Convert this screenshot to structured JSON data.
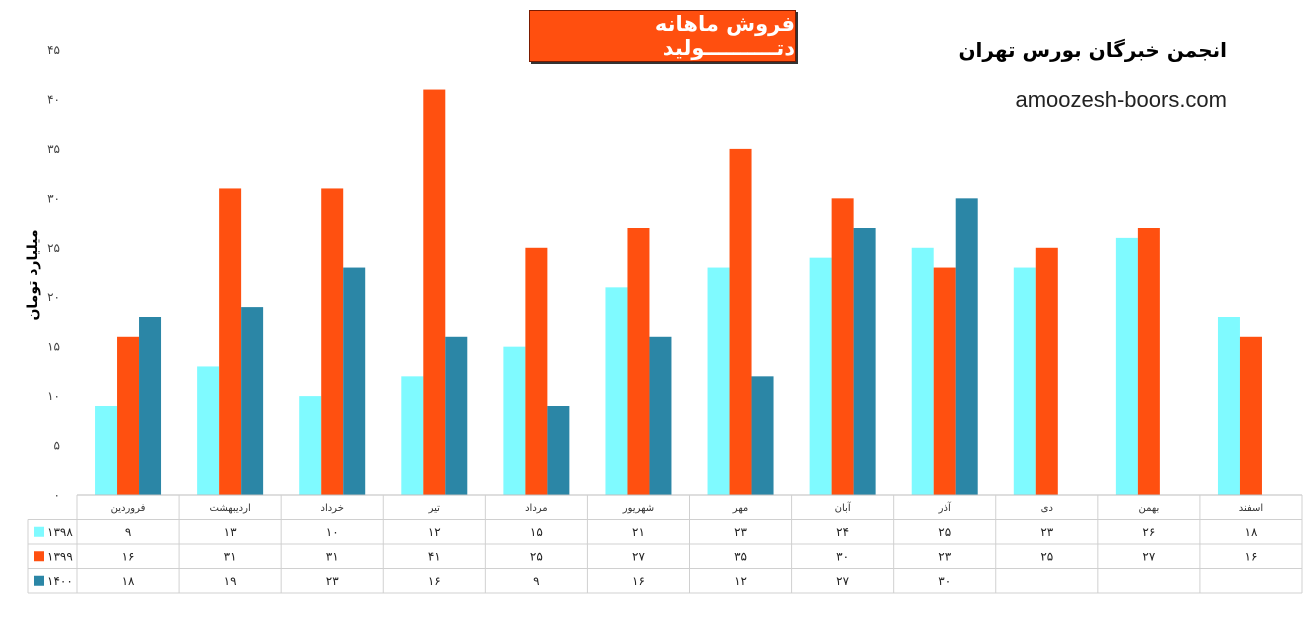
{
  "header": {
    "title": "فروش ماهانه دتــــــــــولید",
    "org_name": "انجمن خبرگان بورس تهران",
    "site_url": "amoozesh-boors.com"
  },
  "chart_data": {
    "type": "bar",
    "title": "فروش ماهانه دتــــــــــولید",
    "ylabel": "میلیارد تومان",
    "xlabel": "",
    "ylim": [
      0,
      45
    ],
    "yticks": [
      0,
      5,
      10,
      15,
      20,
      25,
      30,
      35,
      40,
      45
    ],
    "ytick_labels": [
      "۰",
      "۵",
      "۱۰",
      "۱۵",
      "۲۰",
      "۲۵",
      "۳۰",
      "۳۵",
      "۴۰",
      "۴۵"
    ],
    "grid": false,
    "legend": "data-table-left",
    "categories": [
      "فروردین",
      "اردیبهشت",
      "خرداد",
      "تیر",
      "مرداد",
      "شهریور",
      "مهر",
      "آبان",
      "آذر",
      "دی",
      "بهمن",
      "اسفند"
    ],
    "series": [
      {
        "name": "۱۳۹۸",
        "color": "#7FFAFF",
        "values": [
          9,
          13,
          10,
          12,
          15,
          21,
          23,
          24,
          25,
          23,
          26,
          18
        ],
        "labels": [
          "۹",
          "۱۳",
          "۱۰",
          "۱۲",
          "۱۵",
          "۲۱",
          "۲۳",
          "۲۴",
          "۲۵",
          "۲۳",
          "۲۶",
          "۱۸"
        ]
      },
      {
        "name": "۱۳۹۹",
        "color": "#FF5010",
        "values": [
          16,
          31,
          31,
          41,
          25,
          27,
          35,
          30,
          23,
          25,
          27,
          16
        ],
        "labels": [
          "۱۶",
          "۳۱",
          "۳۱",
          "۴۱",
          "۲۵",
          "۲۷",
          "۳۵",
          "۳۰",
          "۲۳",
          "۲۵",
          "۲۷",
          "۱۶"
        ]
      },
      {
        "name": "۱۴۰۰",
        "color": "#2B86A6",
        "values": [
          18,
          19,
          23,
          16,
          9,
          16,
          12,
          27,
          30,
          null,
          null,
          null
        ],
        "labels": [
          "۱۸",
          "۱۹",
          "۲۳",
          "۱۶",
          "۹",
          "۱۶",
          "۱۲",
          "۲۷",
          "۳۰",
          "",
          "",
          ""
        ]
      }
    ]
  }
}
